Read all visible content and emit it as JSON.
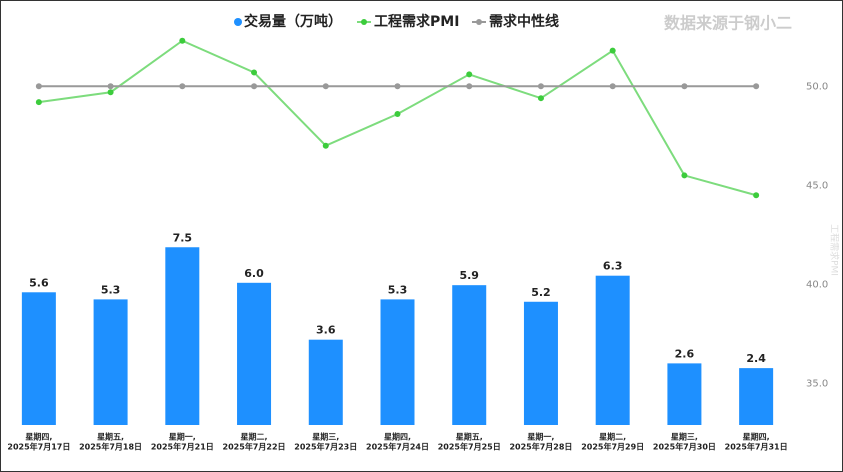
{
  "chart_data": {
    "type": "bar-line",
    "watermark": "数据来源于钢小二",
    "y2_label": "工程需求PMI",
    "categories": [
      [
        "星期四,",
        "2025年7月17日"
      ],
      [
        "星期五,",
        "2025年7月18日"
      ],
      [
        "星期一,",
        "2025年7月21日"
      ],
      [
        "星期二,",
        "2025年7月22日"
      ],
      [
        "星期三,",
        "2025年7月23日"
      ],
      [
        "星期四,",
        "2025年7月24日"
      ],
      [
        "星期五,",
        "2025年7月25日"
      ],
      [
        "星期一,",
        "2025年7月28日"
      ],
      [
        "星期二,",
        "2025年7月29日"
      ],
      [
        "星期三,",
        "2025年7月30日"
      ],
      [
        "星期四,",
        "2025年7月31日"
      ]
    ],
    "series": [
      {
        "name": "交易量（万吨）",
        "type": "bar",
        "color": "#1e90ff",
        "values": [
          5.6,
          5.3,
          7.5,
          6.0,
          3.6,
          5.3,
          5.9,
          5.2,
          6.3,
          2.6,
          2.4
        ],
        "value_labels": [
          "5.6",
          "5.3",
          "7.5",
          "6.0",
          "3.6",
          "5.3",
          "5.9",
          "5.2",
          "6.3",
          "2.6",
          "2.4"
        ]
      },
      {
        "name": "工程需求PMI",
        "type": "line",
        "axis": "y2",
        "color": "#7ddc7d",
        "marker_color": "#3ccc3c",
        "values": [
          49.2,
          49.7,
          52.3,
          50.7,
          47.0,
          48.6,
          50.6,
          49.4,
          51.8,
          45.5,
          44.5
        ]
      },
      {
        "name": "需求中性线",
        "type": "line",
        "axis": "y2",
        "color": "#999999",
        "marker_color": "#999999",
        "values": [
          50,
          50,
          50,
          50,
          50,
          50,
          50,
          50,
          50,
          50,
          50
        ]
      }
    ],
    "ylim": [
      0,
      17.3
    ],
    "y2lim": [
      32.9,
      53.6
    ],
    "y2ticks": [
      {
        "value": 35,
        "label": "35.0"
      },
      {
        "value": 40,
        "label": "40.0"
      },
      {
        "value": 45,
        "label": "45.0"
      },
      {
        "value": 50,
        "label": "50.0"
      }
    ]
  }
}
